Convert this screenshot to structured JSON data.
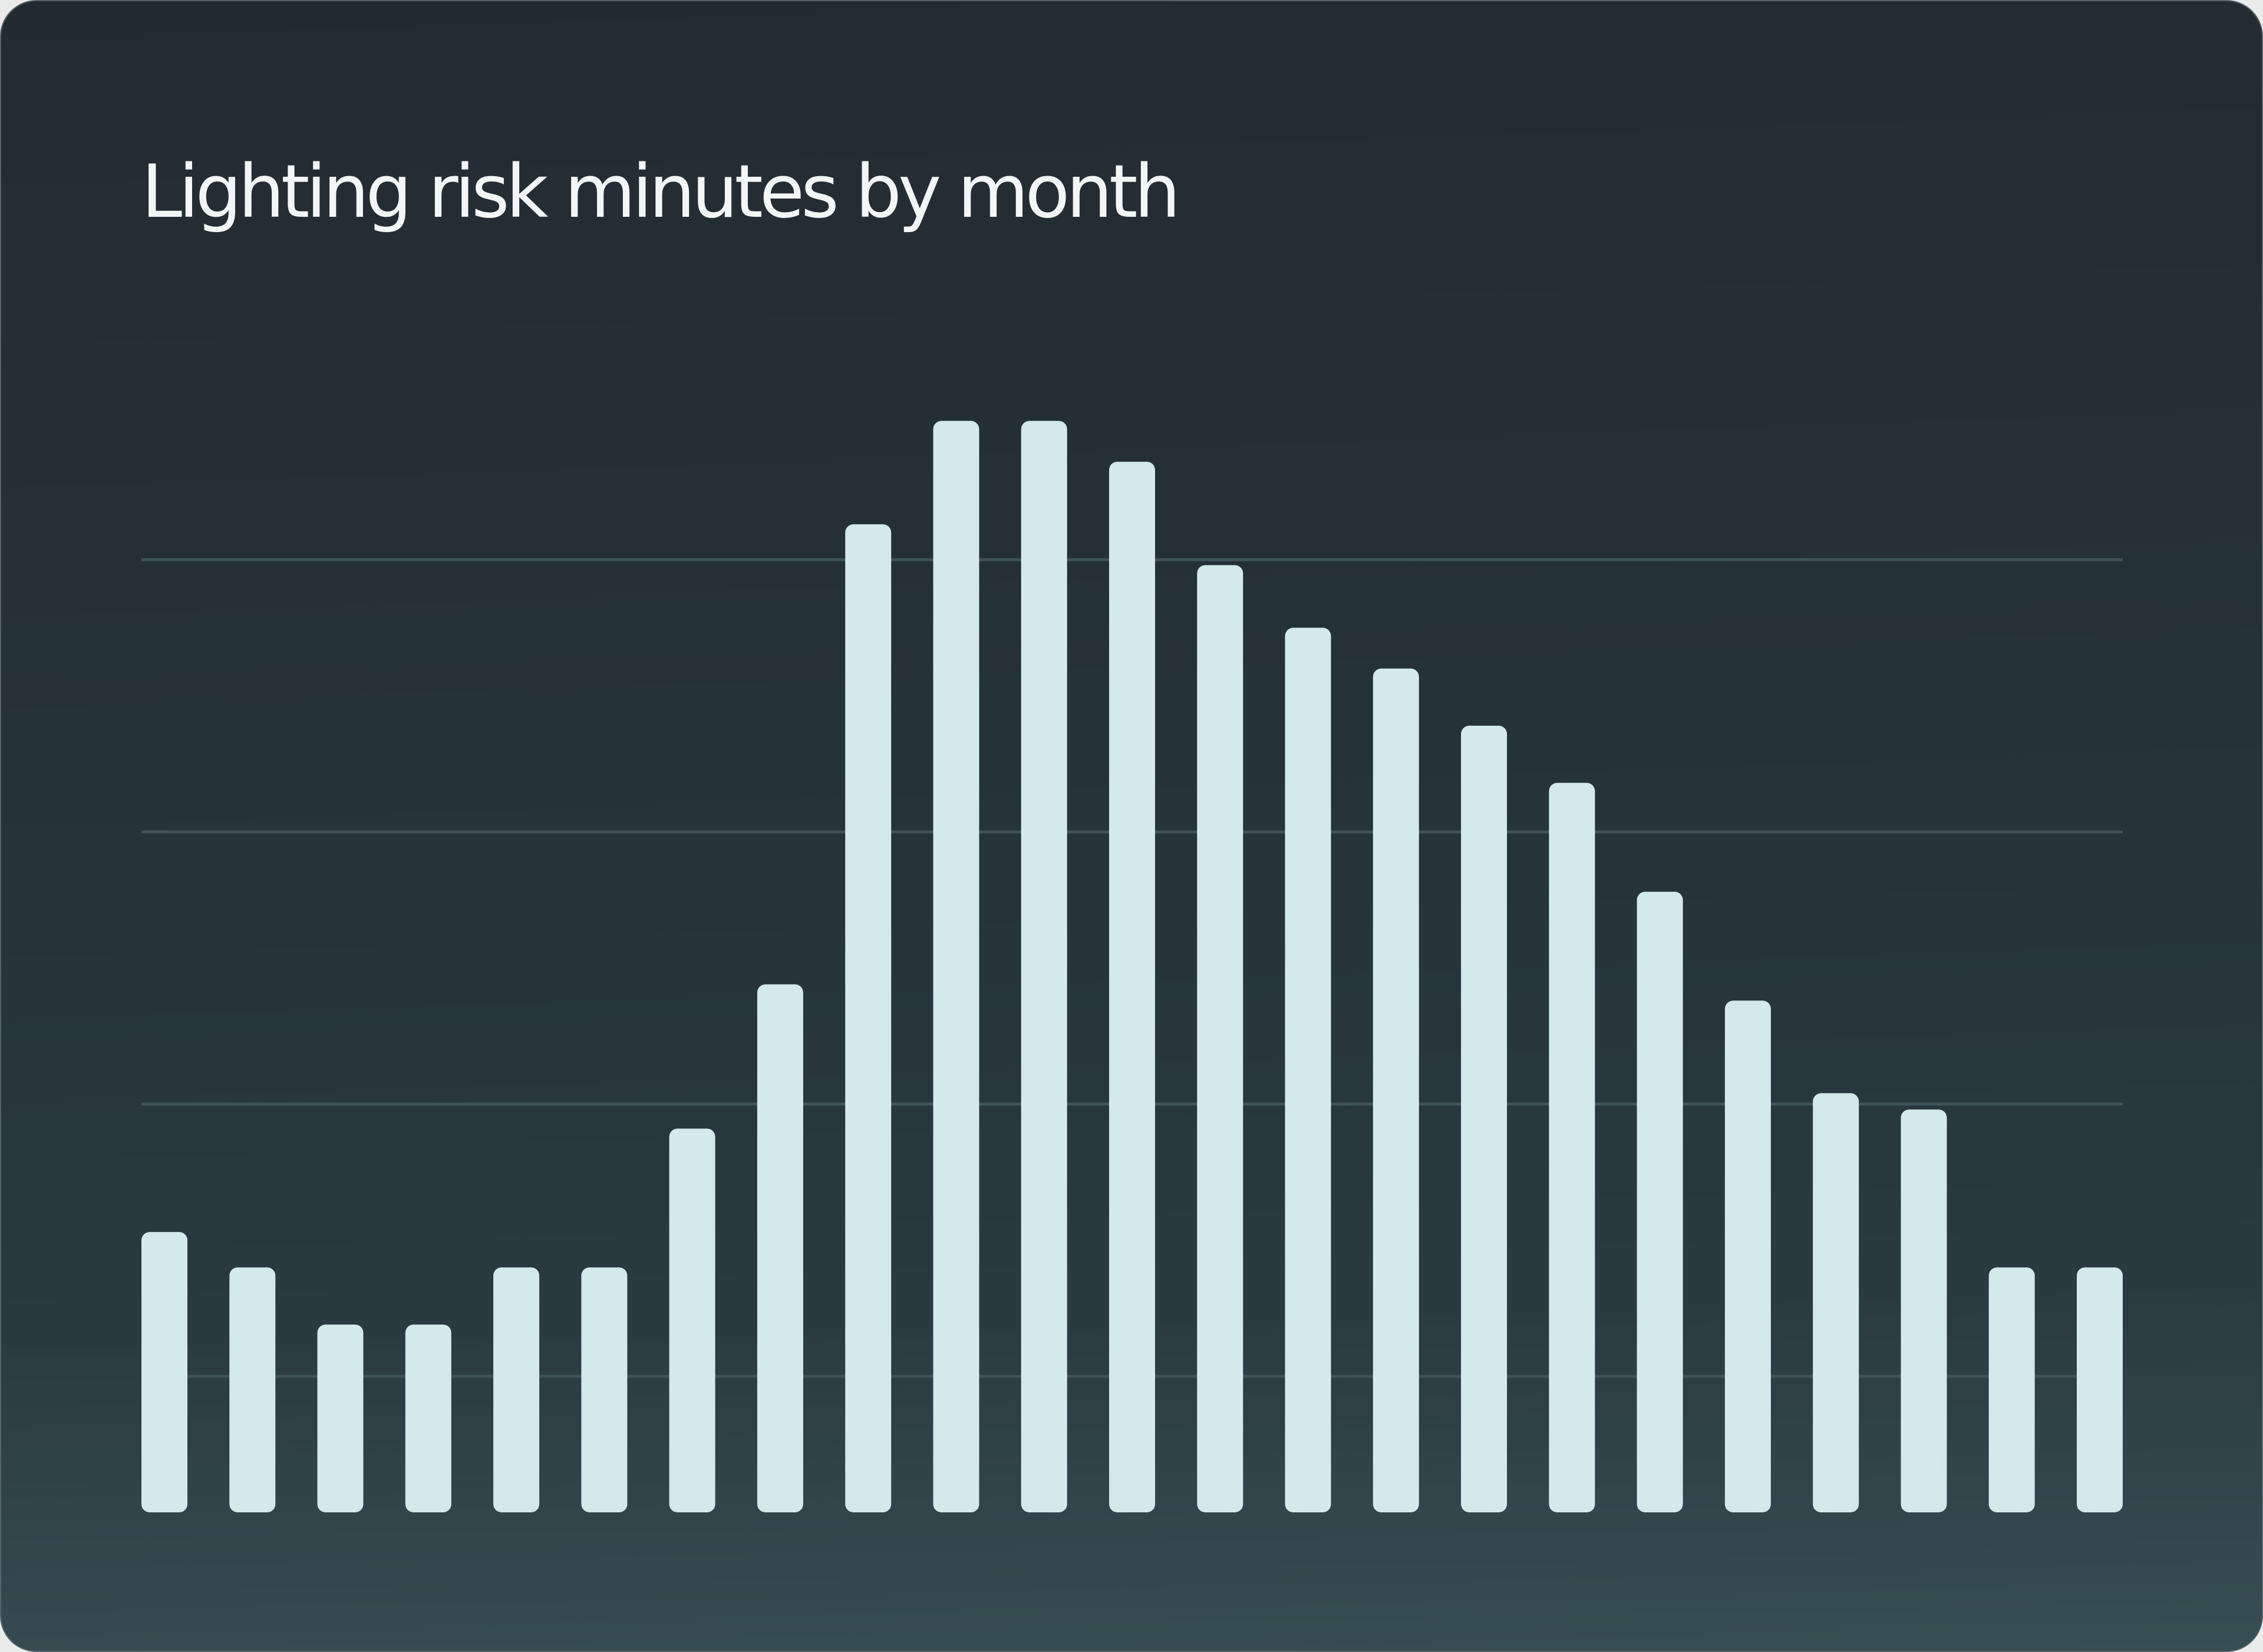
{
  "chart_data": {
    "type": "bar",
    "title": "Lighting risk minutes by month",
    "xlabel": "",
    "ylabel": "",
    "ylim": [
      0,
      4
    ],
    "y_gridlines": [
      0.5,
      1.5,
      2.5,
      3.5
    ],
    "grid": true,
    "legend": "none",
    "values": [
      1.03,
      0.9,
      0.69,
      0.69,
      0.9,
      0.9,
      1.41,
      1.94,
      3.63,
      4.01,
      4.01,
      3.86,
      3.48,
      3.25,
      3.1,
      2.89,
      2.68,
      2.28,
      1.88,
      1.54,
      1.48,
      0.9,
      0.9
    ],
    "colors": {
      "bar": "#d4eaea",
      "grid": "#3f5359",
      "title": "#f2f6f6"
    }
  }
}
